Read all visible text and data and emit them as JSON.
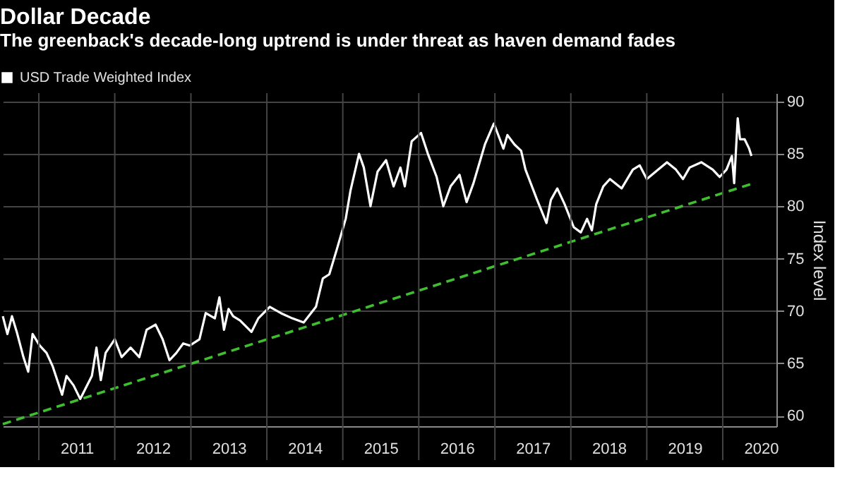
{
  "chart_data": {
    "type": "line",
    "title": "Dollar Decade",
    "subtitle": "The greenback's decade-long uptrend is under threat as haven demand fades",
    "ylabel": "Index level",
    "x": [
      "2010-07-12",
      "2010-08-03",
      "2010-08-25",
      "2010-09-17",
      "2010-10-19",
      "2010-11-11",
      "2010-12-02",
      "2011-01-05",
      "2011-02-07",
      "2011-03-09",
      "2011-04-23",
      "2011-05-14",
      "2011-06-17",
      "2011-07-19",
      "2011-08-11",
      "2011-09-13",
      "2011-10-05",
      "2011-10-26",
      "2011-11-18",
      "2012-01-01",
      "2012-02-03",
      "2012-03-17",
      "2012-04-28",
      "2012-06-02",
      "2012-07-15",
      "2012-08-18",
      "2012-09-20",
      "2012-10-23",
      "2012-11-25",
      "2012-12-27",
      "2013-02-11",
      "2013-03-13",
      "2013-04-26",
      "2013-05-18",
      "2013-06-09",
      "2013-07-01",
      "2013-07-23",
      "2013-08-25",
      "2013-10-19",
      "2013-11-21",
      "2014-01-15",
      "2014-03-09",
      "2014-05-03",
      "2014-06-27",
      "2014-08-25",
      "2014-09-27",
      "2014-10-28",
      "2014-12-02",
      "2015-01-15",
      "2015-02-07",
      "2015-03-20",
      "2015-04-12",
      "2015-05-14",
      "2015-06-17",
      "2015-07-28",
      "2015-09-02",
      "2015-10-05",
      "2015-10-26",
      "2015-11-28",
      "2015-12-09",
      "2016-01-12",
      "2016-02-14",
      "2016-03-27",
      "2016-04-28",
      "2016-06-02",
      "2016-07-15",
      "2016-08-18",
      "2016-09-20",
      "2016-11-14",
      "2016-12-27",
      "2017-02-11",
      "2017-03-02",
      "2017-04-05",
      "2017-05-07",
      "2017-05-28",
      "2017-07-23",
      "2017-09-06",
      "2017-09-27",
      "2017-10-28",
      "2017-12-02",
      "2018-01-15",
      "2018-02-18",
      "2018-03-20",
      "2018-04-12",
      "2018-05-03",
      "2018-06-06",
      "2018-07-08",
      "2018-09-02",
      "2018-10-26",
      "2018-11-28",
      "2019-01-01",
      "2019-02-25",
      "2019-04-08",
      "2019-05-21",
      "2019-06-24",
      "2019-07-26",
      "2019-09-20",
      "2019-11-14",
      "2019-12-17",
      "2020-01-19",
      "2020-02-14",
      "2020-02-25",
      "2020-03-13",
      "2020-03-24",
      "2020-04-15",
      "2020-05-07",
      "2020-05-18"
    ],
    "series": [
      {
        "name": "USD Trade Weighted Index",
        "color": "#ffffff",
        "line_style": "solid",
        "values": [
          69.5,
          67.8,
          69.5,
          68.0,
          65.6,
          64.2,
          67.8,
          66.7,
          66.0,
          64.7,
          62.0,
          63.8,
          62.9,
          61.6,
          62.5,
          63.8,
          66.5,
          63.4,
          66.0,
          67.3,
          65.6,
          66.5,
          65.6,
          68.2,
          68.7,
          67.3,
          65.3,
          66.0,
          66.9,
          66.7,
          67.3,
          69.8,
          69.3,
          71.3,
          68.2,
          70.2,
          69.5,
          69.1,
          68.0,
          69.3,
          70.4,
          69.8,
          69.3,
          68.9,
          70.4,
          73.1,
          73.5,
          75.8,
          78.8,
          81.5,
          85.0,
          83.7,
          80.0,
          83.3,
          84.4,
          81.9,
          83.7,
          81.9,
          86.2,
          86.4,
          87.0,
          85.0,
          82.8,
          80.0,
          81.9,
          83.0,
          80.4,
          82.2,
          85.9,
          87.9,
          85.5,
          86.8,
          85.9,
          85.3,
          83.5,
          80.6,
          78.4,
          80.6,
          81.7,
          80.2,
          78.0,
          77.5,
          78.8,
          77.7,
          80.2,
          81.9,
          82.6,
          81.7,
          83.5,
          83.9,
          82.6,
          83.5,
          84.2,
          83.5,
          82.6,
          83.7,
          84.2,
          83.5,
          82.8,
          83.5,
          84.8,
          82.2,
          88.4,
          86.4,
          86.4,
          85.5,
          84.8
        ]
      },
      {
        "type": "line",
        "color": "#3fbf2f",
        "line_style": "dashed",
        "x": [
          "2010-07-12",
          "2020-05-28"
        ],
        "values": [
          59.2,
          82.2
        ]
      }
    ],
    "xlim": [
      "2010-07-12",
      "2020-09-15"
    ],
    "xticks": [
      {
        "value": "2011-01-01",
        "label": null
      },
      {
        "value": "2011-07-02",
        "label": "2011"
      },
      {
        "value": "2012-01-01",
        "label": null
      },
      {
        "value": "2012-07-02",
        "label": "2012"
      },
      {
        "value": "2013-01-01",
        "label": null
      },
      {
        "value": "2013-07-02",
        "label": "2013"
      },
      {
        "value": "2014-01-01",
        "label": null
      },
      {
        "value": "2014-07-02",
        "label": "2014"
      },
      {
        "value": "2015-01-01",
        "label": null
      },
      {
        "value": "2015-07-02",
        "label": "2015"
      },
      {
        "value": "2016-01-01",
        "label": null
      },
      {
        "value": "2016-07-02",
        "label": "2016"
      },
      {
        "value": "2017-01-01",
        "label": null
      },
      {
        "value": "2017-07-02",
        "label": "2017"
      },
      {
        "value": "2018-01-01",
        "label": null
      },
      {
        "value": "2018-07-02",
        "label": "2018"
      },
      {
        "value": "2019-01-01",
        "label": null
      },
      {
        "value": "2019-07-02",
        "label": "2019"
      },
      {
        "value": "2020-01-01",
        "label": null
      },
      {
        "value": "2020-07-02",
        "label": "2020"
      }
    ],
    "ylim": [
      59.0,
      90.8
    ],
    "yticks": [
      60,
      65,
      70,
      75,
      80,
      85,
      90
    ],
    "grid": true,
    "legend": "top left"
  }
}
